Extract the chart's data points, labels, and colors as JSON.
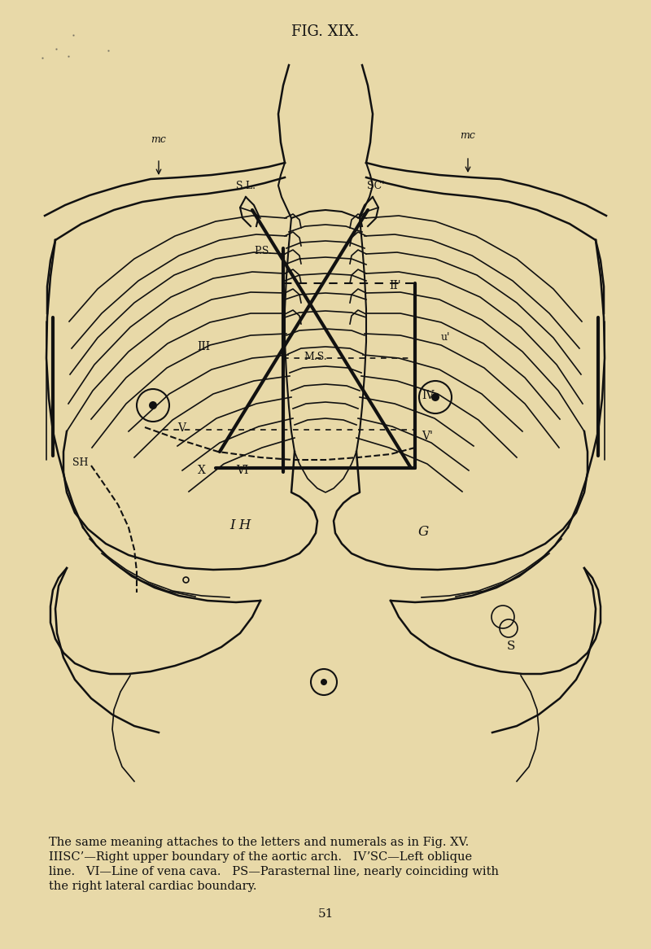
{
  "bg_color": "#e8d9a8",
  "line_color": "#111111",
  "title": "FIG. XIX.",
  "caption_line1": "The same meaning attaches to the letters and numerals as in Fig. XV.",
  "caption_line2": "IIISC’—Right upper boundary of the aortic arch.   IVʼSC—Left oblique",
  "caption_line3": "line.   VI—Line of vena cava.   PS—Parasternal line, nearly coinciding with",
  "caption_line4": "the right lateral cardiac boundary.",
  "page_number": "51"
}
